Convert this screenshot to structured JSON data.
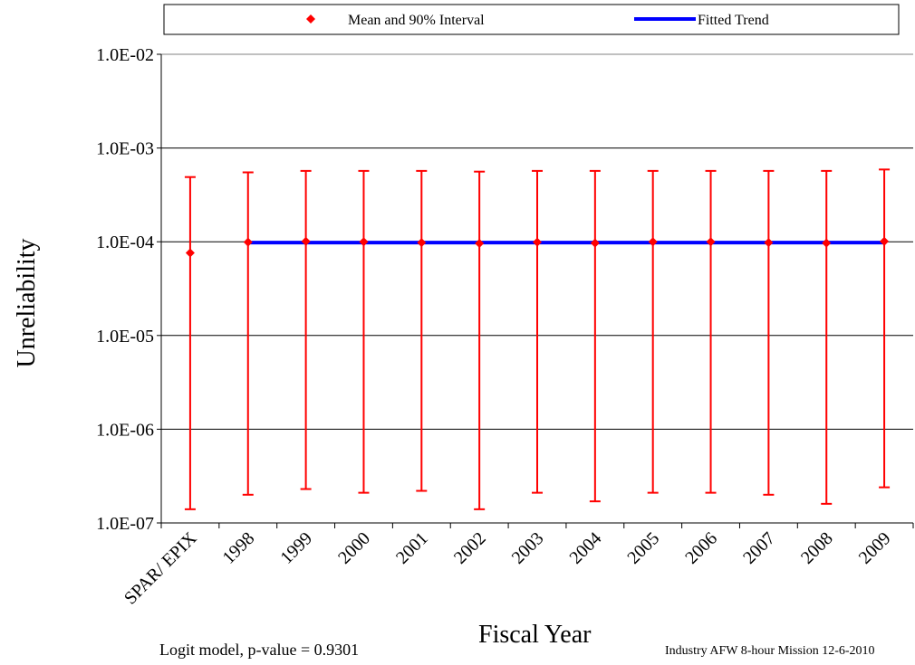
{
  "chart_data": {
    "type": "scatter",
    "y_scale": "log",
    "ylim": [
      1e-07,
      0.01
    ],
    "ylabel": "Unreliability",
    "xlabel": "Fiscal Year",
    "y_tick_labels": [
      "1.0E-07",
      "1.0E-06",
      "1.0E-05",
      "1.0E-04",
      "1.0E-03",
      "1.0E-02"
    ],
    "y_tick_values": [
      1e-07,
      1e-06,
      1e-05,
      0.0001,
      0.001,
      0.01
    ],
    "grid": "horizontal",
    "legend": {
      "position": "top",
      "items": [
        {
          "label": "Mean and 90% Interval",
          "marker": "diamond",
          "color": "#ff0000"
        },
        {
          "label": "Fitted Trend",
          "marker": "line",
          "color": "#0000ff"
        }
      ]
    },
    "categories": [
      "SPAR/ EPIX",
      "1998",
      "1999",
      "2000",
      "2001",
      "2002",
      "2003",
      "2004",
      "2005",
      "2006",
      "2007",
      "2008",
      "2009"
    ],
    "series": [
      {
        "name": "Mean and 90% Interval",
        "color": "#ff0000",
        "mean": [
          7.6e-05,
          9.9e-05,
          0.000101,
          0.0001,
          9.8e-05,
          9.6e-05,
          9.9e-05,
          9.7e-05,
          0.0001,
          0.0001,
          9.8e-05,
          9.7e-05,
          0.000101
        ],
        "lower": [
          1.4e-07,
          2e-07,
          2.3e-07,
          2.1e-07,
          2.2e-07,
          1.4e-07,
          2.1e-07,
          1.7e-07,
          2.1e-07,
          2.1e-07,
          2e-07,
          1.6e-07,
          2.4e-07
        ],
        "upper": [
          0.00049,
          0.00055,
          0.00057,
          0.00057,
          0.00057,
          0.00056,
          0.00057,
          0.00057,
          0.00057,
          0.00057,
          0.00057,
          0.00057,
          0.00059
        ]
      },
      {
        "name": "Fitted Trend",
        "color": "#0000ff",
        "x": [
          "1998",
          "2009"
        ],
        "values": [
          9.8e-05,
          9.8e-05
        ]
      }
    ]
  },
  "notes": {
    "model": "Logit model, p-value = 0.9301",
    "source": "Industry AFW 8-hour Mission 12-6-2010"
  }
}
